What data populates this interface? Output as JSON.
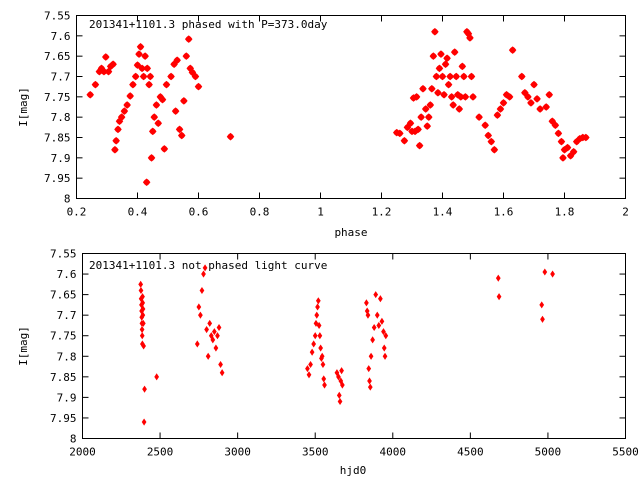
{
  "chart_data": [
    {
      "type": "scatter",
      "title": "201341+1101.3 phased with P=373.0day",
      "xlabel": "phase",
      "ylabel": "I[mag]",
      "xlim": [
        0.2,
        2.0
      ],
      "ylim": [
        8.0,
        7.55
      ],
      "y_inverted": true,
      "grid": false,
      "legend": "none",
      "marker": "star",
      "color": "#ff0000",
      "x_ticks": [
        "0.2",
        "0.4",
        "0.6",
        "0.8",
        "1",
        "1.2",
        "1.4",
        "1.6",
        "1.8",
        "2"
      ],
      "y_ticks": [
        "7.55",
        "7.6",
        "7.65",
        "7.7",
        "7.75",
        "7.8",
        "7.85",
        "7.9",
        "7.95",
        "8"
      ],
      "points": [
        [
          0.245,
          7.745
        ],
        [
          0.262,
          7.72
        ],
        [
          0.275,
          7.688
        ],
        [
          0.282,
          7.68
        ],
        [
          0.29,
          7.688
        ],
        [
          0.296,
          7.652
        ],
        [
          0.305,
          7.688
        ],
        [
          0.312,
          7.675
        ],
        [
          0.32,
          7.67
        ],
        [
          0.326,
          7.88
        ],
        [
          0.33,
          7.858
        ],
        [
          0.336,
          7.83
        ],
        [
          0.341,
          7.81
        ],
        [
          0.348,
          7.8
        ],
        [
          0.357,
          7.785
        ],
        [
          0.366,
          7.77
        ],
        [
          0.376,
          7.748
        ],
        [
          0.385,
          7.72
        ],
        [
          0.394,
          7.7
        ],
        [
          0.4,
          7.672
        ],
        [
          0.405,
          7.645
        ],
        [
          0.41,
          7.627
        ],
        [
          0.415,
          7.68
        ],
        [
          0.42,
          7.7
        ],
        [
          0.425,
          7.65
        ],
        [
          0.432,
          7.68
        ],
        [
          0.438,
          7.72
        ],
        [
          0.442,
          7.7
        ],
        [
          0.446,
          7.9
        ],
        [
          0.45,
          7.835
        ],
        [
          0.455,
          7.8
        ],
        [
          0.462,
          7.77
        ],
        [
          0.468,
          7.815
        ],
        [
          0.475,
          7.75
        ],
        [
          0.482,
          7.757
        ],
        [
          0.488,
          7.878
        ],
        [
          0.495,
          7.72
        ],
        [
          0.51,
          7.7
        ],
        [
          0.52,
          7.67
        ],
        [
          0.525,
          7.785
        ],
        [
          0.53,
          7.66
        ],
        [
          0.538,
          7.83
        ],
        [
          0.545,
          7.845
        ],
        [
          0.552,
          7.76
        ],
        [
          0.56,
          7.65
        ],
        [
          0.568,
          7.608
        ],
        [
          0.573,
          7.68
        ],
        [
          0.58,
          7.69
        ],
        [
          0.59,
          7.7
        ],
        [
          0.6,
          7.725
        ],
        [
          0.43,
          7.96
        ],
        [
          0.705,
          7.848
        ],
        [
          1.25,
          7.838
        ],
        [
          1.26,
          7.84
        ],
        [
          1.275,
          7.858
        ],
        [
          1.285,
          7.825
        ],
        [
          1.295,
          7.815
        ],
        [
          1.3,
          7.835
        ],
        [
          1.305,
          7.753
        ],
        [
          1.31,
          7.835
        ],
        [
          1.315,
          7.75
        ],
        [
          1.32,
          7.83
        ],
        [
          1.325,
          7.87
        ],
        [
          1.33,
          7.8
        ],
        [
          1.336,
          7.73
        ],
        [
          1.345,
          7.78
        ],
        [
          1.35,
          7.822
        ],
        [
          1.355,
          7.8
        ],
        [
          1.36,
          7.77
        ],
        [
          1.365,
          7.73
        ],
        [
          1.37,
          7.65
        ],
        [
          1.375,
          7.59
        ],
        [
          1.38,
          7.7
        ],
        [
          1.385,
          7.74
        ],
        [
          1.39,
          7.68
        ],
        [
          1.395,
          7.645
        ],
        [
          1.4,
          7.7
        ],
        [
          1.405,
          7.745
        ],
        [
          1.41,
          7.67
        ],
        [
          1.415,
          7.655
        ],
        [
          1.42,
          7.72
        ],
        [
          1.425,
          7.7
        ],
        [
          1.43,
          7.75
        ],
        [
          1.435,
          7.77
        ],
        [
          1.44,
          7.64
        ],
        [
          1.445,
          7.7
        ],
        [
          1.45,
          7.745
        ],
        [
          1.455,
          7.78
        ],
        [
          1.46,
          7.75
        ],
        [
          1.465,
          7.675
        ],
        [
          1.47,
          7.7
        ],
        [
          1.475,
          7.75
        ],
        [
          1.48,
          7.59
        ],
        [
          1.485,
          7.595
        ],
        [
          1.49,
          7.605
        ],
        [
          1.495,
          7.7
        ],
        [
          1.5,
          7.75
        ],
        [
          1.52,
          7.8
        ],
        [
          1.54,
          7.82
        ],
        [
          1.55,
          7.845
        ],
        [
          1.56,
          7.86
        ],
        [
          1.57,
          7.88
        ],
        [
          1.58,
          7.795
        ],
        [
          1.59,
          7.78
        ],
        [
          1.6,
          7.765
        ],
        [
          1.61,
          7.745
        ],
        [
          1.62,
          7.75
        ],
        [
          1.63,
          7.635
        ],
        [
          1.66,
          7.7
        ],
        [
          1.67,
          7.74
        ],
        [
          1.68,
          7.75
        ],
        [
          1.69,
          7.765
        ],
        [
          1.7,
          7.72
        ],
        [
          1.71,
          7.755
        ],
        [
          1.72,
          7.78
        ],
        [
          1.74,
          7.775
        ],
        [
          1.75,
          7.745
        ],
        [
          1.76,
          7.81
        ],
        [
          1.77,
          7.82
        ],
        [
          1.78,
          7.84
        ],
        [
          1.79,
          7.86
        ],
        [
          1.795,
          7.9
        ],
        [
          1.8,
          7.88
        ],
        [
          1.81,
          7.875
        ],
        [
          1.82,
          7.895
        ],
        [
          1.83,
          7.885
        ],
        [
          1.84,
          7.86
        ],
        [
          1.85,
          7.853
        ],
        [
          1.86,
          7.85
        ],
        [
          1.87,
          7.85
        ]
      ]
    },
    {
      "type": "scatter",
      "title": "201341+1101.3 not phased light curve",
      "xlabel": "hjd0",
      "ylabel": "I[mag]",
      "xlim": [
        2000,
        5500
      ],
      "ylim": [
        8.0,
        7.55
      ],
      "y_inverted": true,
      "grid": false,
      "legend": "none",
      "marker": "diamond",
      "color": "#ff0000",
      "x_ticks": [
        "2000",
        "2500",
        "3000",
        "3500",
        "4000",
        "4500",
        "5000",
        "5500"
      ],
      "y_ticks": [
        "7.55",
        "7.6",
        "7.65",
        "7.7",
        "7.75",
        "7.8",
        "7.85",
        "7.9",
        "7.95",
        "8"
      ],
      "points": [
        [
          2375,
          7.625
        ],
        [
          2377,
          7.64
        ],
        [
          2378,
          7.66
        ],
        [
          2380,
          7.675
        ],
        [
          2381,
          7.69
        ],
        [
          2382,
          7.705
        ],
        [
          2383,
          7.72
        ],
        [
          2384,
          7.735
        ],
        [
          2385,
          7.75
        ],
        [
          2386,
          7.77
        ],
        [
          2387,
          7.655
        ],
        [
          2388,
          7.67
        ],
        [
          2389,
          7.7
        ],
        [
          2390,
          7.685
        ],
        [
          2392,
          7.72
        ],
        [
          2394,
          7.775
        ],
        [
          2397,
          7.96
        ],
        [
          2400,
          7.88
        ],
        [
          2478,
          7.85
        ],
        [
          2750,
          7.68
        ],
        [
          2760,
          7.7
        ],
        [
          2770,
          7.64
        ],
        [
          2780,
          7.6
        ],
        [
          2790,
          7.585
        ],
        [
          2800,
          7.735
        ],
        [
          2810,
          7.8
        ],
        [
          2820,
          7.72
        ],
        [
          2830,
          7.75
        ],
        [
          2840,
          7.76
        ],
        [
          2850,
          7.74
        ],
        [
          2860,
          7.78
        ],
        [
          2870,
          7.75
        ],
        [
          2880,
          7.73
        ],
        [
          2890,
          7.82
        ],
        [
          2900,
          7.84
        ],
        [
          2740,
          7.77
        ],
        [
          3450,
          7.83
        ],
        [
          3460,
          7.845
        ],
        [
          3470,
          7.82
        ],
        [
          3480,
          7.79
        ],
        [
          3490,
          7.77
        ],
        [
          3500,
          7.75
        ],
        [
          3505,
          7.72
        ],
        [
          3510,
          7.7
        ],
        [
          3515,
          7.68
        ],
        [
          3520,
          7.665
        ],
        [
          3525,
          7.725
        ],
        [
          3530,
          7.75
        ],
        [
          3535,
          7.78
        ],
        [
          3540,
          7.805
        ],
        [
          3545,
          7.8
        ],
        [
          3550,
          7.82
        ],
        [
          3555,
          7.855
        ],
        [
          3560,
          7.87
        ],
        [
          3640,
          7.84
        ],
        [
          3650,
          7.85
        ],
        [
          3655,
          7.895
        ],
        [
          3660,
          7.91
        ],
        [
          3665,
          7.86
        ],
        [
          3670,
          7.835
        ],
        [
          3675,
          7.87
        ],
        [
          3830,
          7.67
        ],
        [
          3835,
          7.69
        ],
        [
          3840,
          7.7
        ],
        [
          3845,
          7.83
        ],
        [
          3850,
          7.86
        ],
        [
          3855,
          7.875
        ],
        [
          3860,
          7.8
        ],
        [
          3870,
          7.76
        ],
        [
          3880,
          7.73
        ],
        [
          3890,
          7.65
        ],
        [
          3900,
          7.7
        ],
        [
          3910,
          7.725
        ],
        [
          3920,
          7.66
        ],
        [
          3930,
          7.715
        ],
        [
          3940,
          7.74
        ],
        [
          3945,
          7.78
        ],
        [
          3950,
          7.8
        ],
        [
          3955,
          7.75
        ],
        [
          4680,
          7.61
        ],
        [
          4685,
          7.655
        ],
        [
          4960,
          7.675
        ],
        [
          4965,
          7.71
        ],
        [
          4980,
          7.595
        ],
        [
          5030,
          7.6
        ]
      ]
    }
  ]
}
